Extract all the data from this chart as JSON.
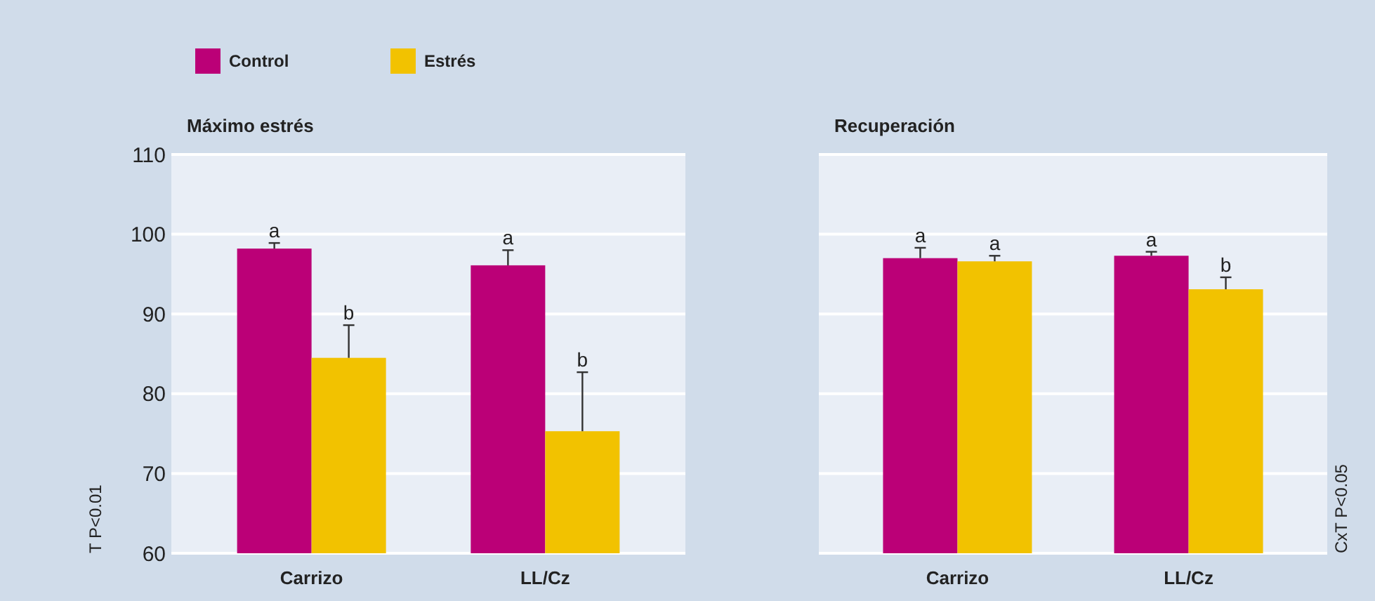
{
  "chart_data": [
    {
      "type": "bar",
      "title": "Máximo estrés",
      "categories": [
        "Carrizo",
        "LL/Cz"
      ],
      "series": [
        {
          "name": "Control",
          "color": "#bb0077",
          "values": [
            98.2,
            96.1
          ],
          "errors": [
            [
              98.2,
              98.9
            ],
            [
              96.1,
              98.0
            ]
          ],
          "value_labels": [
            "a",
            "a"
          ]
        },
        {
          "name": "Estrés",
          "color": "#f2c200",
          "values": [
            84.5,
            75.3
          ],
          "errors": [
            [
              84.5,
              88.6
            ],
            [
              75.3,
              82.7
            ]
          ],
          "value_labels": [
            "b",
            "b"
          ]
        }
      ],
      "ylim": [
        60,
        110
      ],
      "yticks": [
        60,
        70,
        80,
        90,
        100,
        110
      ],
      "grid": "y",
      "legend": "top left",
      "annotations": [
        "T P<0.01"
      ]
    },
    {
      "type": "bar",
      "title": "Recuperación",
      "categories": [
        "Carrizo",
        "LL/Cz"
      ],
      "series": [
        {
          "color": "#bb0077",
          "values": [
            97.0,
            97.3
          ],
          "errors": [
            [
              97.0,
              98.3
            ],
            [
              97.3,
              97.8
            ]
          ],
          "value_labels": [
            "a",
            "a"
          ]
        },
        {
          "color": "#f2c200",
          "values": [
            96.6,
            93.1
          ],
          "errors": [
            [
              96.6,
              97.3
            ],
            [
              93.1,
              94.6
            ]
          ],
          "value_labels": [
            "a",
            "b"
          ]
        }
      ],
      "ylim": [
        60,
        110
      ],
      "yticks": [
        60,
        70,
        80,
        90,
        100,
        110
      ],
      "grid": "y",
      "tick_labels": "x",
      "annotations": [
        "CxT P<0.05"
      ]
    }
  ]
}
